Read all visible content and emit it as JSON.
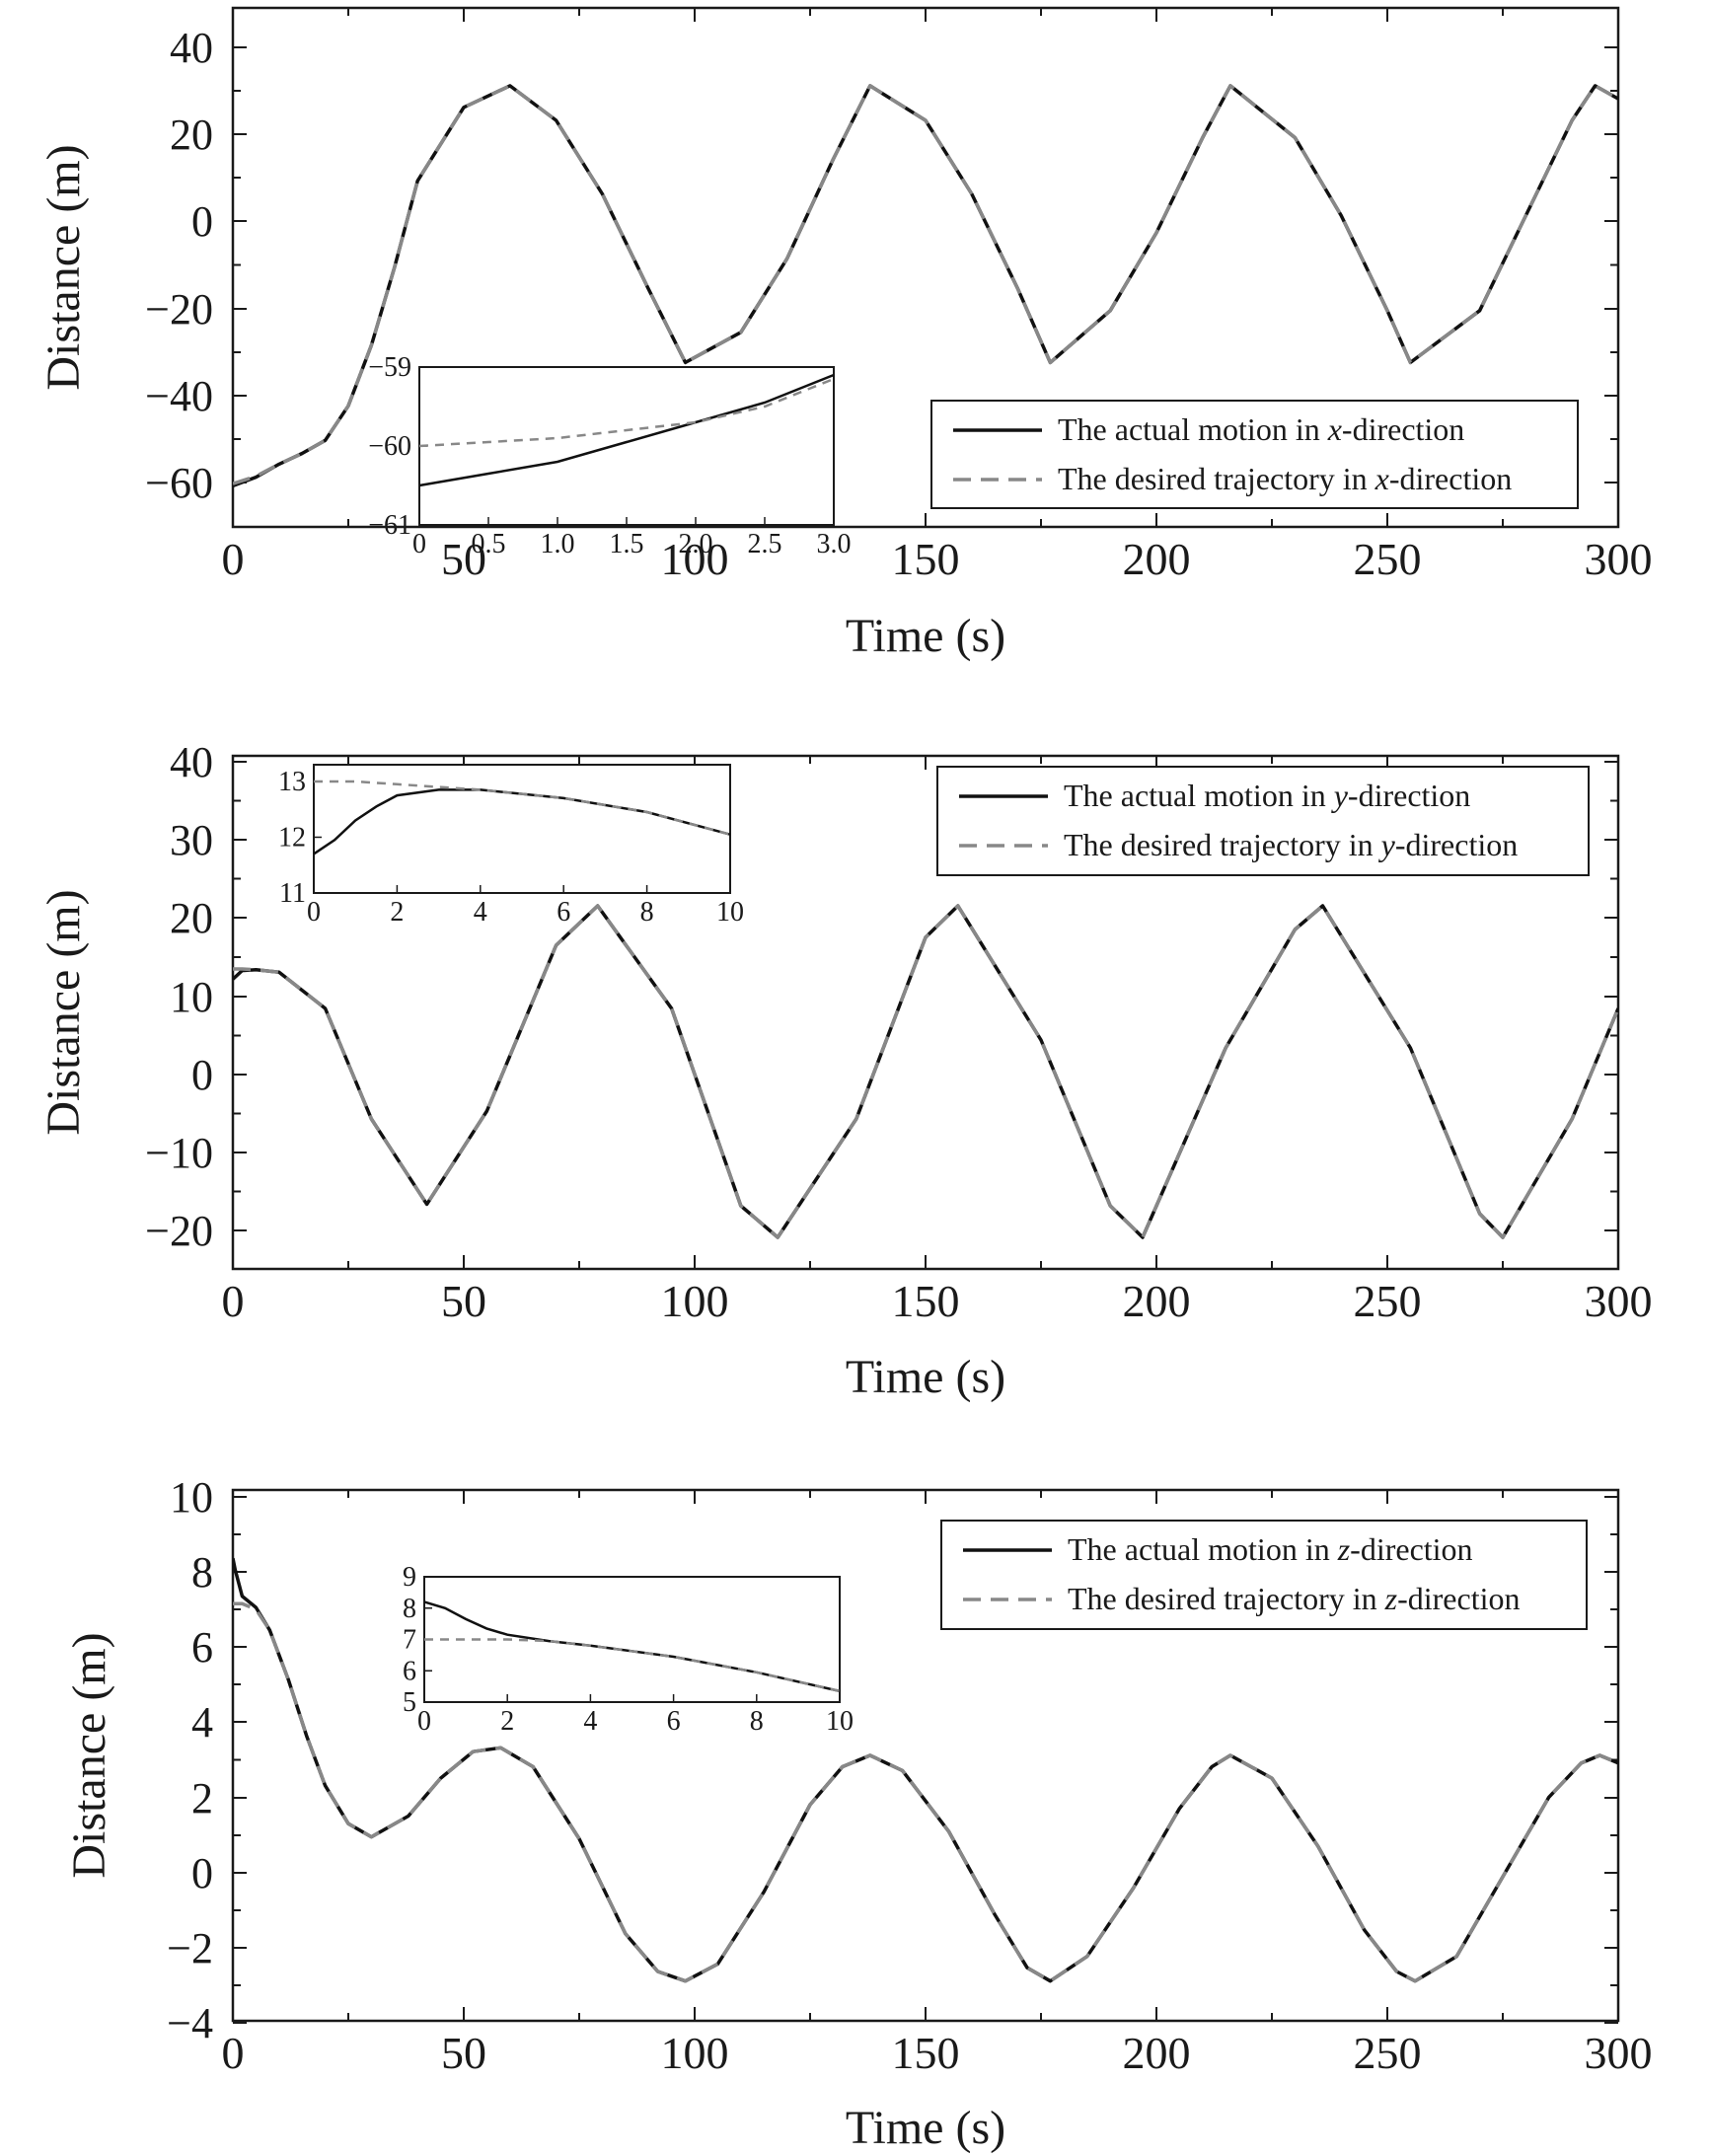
{
  "chart_data": [
    {
      "type": "line",
      "xlabel": "Time (s)",
      "ylabel": "Distance (m)",
      "xlim": [
        0,
        300
      ],
      "ylim": [
        -70,
        50
      ],
      "xticks": [
        "0",
        "50",
        "100",
        "150",
        "200",
        "250",
        "300"
      ],
      "yticks": [
        "40",
        "20",
        "0",
        "−20",
        "−40",
        "−60"
      ],
      "legend_position": "lower-right",
      "series": [
        {
          "name": "The actual motion in x-direction",
          "name_prefix": "The actual motion in ",
          "name_axis": "x",
          "name_suffix": "-direction",
          "style": "solid",
          "color": "#111111",
          "x": [
            0,
            5,
            10,
            15,
            20,
            25,
            30,
            35,
            40,
            50,
            60,
            70,
            80,
            90,
            98,
            110,
            120,
            130,
            138,
            150,
            160,
            170,
            177,
            190,
            200,
            210,
            216,
            230,
            240,
            250,
            255,
            270,
            280,
            290,
            295,
            300
          ],
          "y": [
            -60.5,
            -58.5,
            -55.5,
            -53,
            -50,
            -42,
            -28,
            -10,
            10,
            27,
            32,
            24,
            7,
            -15,
            -32,
            -25,
            -8,
            15,
            32,
            24,
            7,
            -15,
            -32,
            -20,
            -2,
            20,
            32,
            20,
            2,
            -20,
            -32,
            -20,
            2,
            24,
            32,
            29
          ]
        },
        {
          "name": "The desired trajectory in x-direction",
          "name_prefix": "The desired trajectory in ",
          "name_axis": "x",
          "name_suffix": "-direction",
          "style": "dashed",
          "color": "#888888",
          "x": [
            0,
            5,
            10,
            15,
            20,
            25,
            30,
            35,
            40,
            50,
            60,
            70,
            80,
            90,
            98,
            110,
            120,
            130,
            138,
            150,
            160,
            170,
            177,
            190,
            200,
            210,
            216,
            230,
            240,
            250,
            255,
            270,
            280,
            290,
            295,
            300
          ],
          "y": [
            -60,
            -58.3,
            -55.5,
            -53,
            -50,
            -42,
            -28,
            -10,
            10,
            27,
            32,
            24,
            7,
            -15,
            -32,
            -25,
            -8,
            15,
            32,
            24,
            7,
            -15,
            -32,
            -20,
            -2,
            20,
            32,
            20,
            2,
            -20,
            -32,
            -20,
            2,
            24,
            32,
            29
          ]
        }
      ],
      "inset": {
        "xlim": [
          0,
          3
        ],
        "ylim": [
          -61,
          -59
        ],
        "xticks": [
          "0",
          "0.5",
          "1.0",
          "1.5",
          "2.0",
          "2.5",
          "3.0"
        ],
        "yticks": [
          "−59",
          "−60",
          "−61"
        ],
        "series": [
          {
            "style": "solid",
            "x": [
              0,
              0.5,
              1,
              1.5,
              2,
              2.5,
              3
            ],
            "y": [
              -60.5,
              -60.35,
              -60.2,
              -59.95,
              -59.7,
              -59.45,
              -59.1
            ]
          },
          {
            "style": "dashed",
            "x": [
              0,
              0.5,
              1,
              1.5,
              2,
              2.5,
              3
            ],
            "y": [
              -60,
              -59.95,
              -59.9,
              -59.8,
              -59.7,
              -59.5,
              -59.15
            ]
          }
        ]
      }
    },
    {
      "type": "line",
      "xlabel": "Time (s)",
      "ylabel": "Distance (m)",
      "xlim": [
        0,
        300
      ],
      "ylim": [
        -25,
        40
      ],
      "xticks": [
        "0",
        "50",
        "100",
        "150",
        "200",
        "250",
        "300"
      ],
      "yticks": [
        "40",
        "30",
        "20",
        "10",
        "0",
        "−10",
        "−20"
      ],
      "legend_position": "top-right",
      "series": [
        {
          "name": "The actual motion in y-direction",
          "name_prefix": "The actual motion in ",
          "name_axis": "y",
          "name_suffix": "-direction",
          "style": "solid",
          "color": "#111111",
          "x": [
            0,
            2,
            5,
            10,
            20,
            30,
            42,
            55,
            70,
            79,
            95,
            110,
            118,
            135,
            150,
            157,
            175,
            190,
            197,
            215,
            230,
            236,
            255,
            270,
            275,
            290,
            300
          ],
          "y": [
            11.7,
            12.8,
            12.9,
            12.6,
            8,
            -6,
            -16.8,
            -5,
            16,
            21,
            8,
            -17,
            -21,
            -6,
            17,
            21,
            4,
            -17,
            -21,
            3,
            18,
            21,
            3,
            -18,
            -21,
            -6,
            8
          ]
        },
        {
          "name": "The desired trajectory in y-direction",
          "name_prefix": "The desired trajectory in ",
          "name_axis": "y",
          "name_suffix": "-direction",
          "style": "dashed",
          "color": "#888888",
          "x": [
            0,
            2,
            5,
            10,
            20,
            30,
            42,
            55,
            70,
            79,
            95,
            110,
            118,
            135,
            150,
            157,
            175,
            190,
            197,
            215,
            230,
            236,
            255,
            270,
            275,
            290,
            300
          ],
          "y": [
            13,
            13,
            12.9,
            12.6,
            8,
            -6,
            -16.8,
            -5,
            16,
            21,
            8,
            -17,
            -21,
            -6,
            17,
            21,
            4,
            -17,
            -21,
            3,
            18,
            21,
            3,
            -18,
            -21,
            -6,
            8
          ]
        }
      ],
      "inset": {
        "xlim": [
          0,
          10
        ],
        "ylim": [
          11,
          13.3
        ],
        "xticks": [
          "0",
          "2",
          "4",
          "6",
          "8",
          "10"
        ],
        "yticks": [
          "13",
          "12",
          "11"
        ],
        "series": [
          {
            "style": "solid",
            "x": [
              0,
              0.5,
              1,
              1.5,
              2,
              3,
              4,
              6,
              8,
              10
            ],
            "y": [
              11.7,
              11.95,
              12.3,
              12.55,
              12.75,
              12.85,
              12.85,
              12.7,
              12.45,
              12.05
            ]
          },
          {
            "style": "dashed",
            "x": [
              0,
              1,
              2,
              3,
              4,
              6,
              8,
              10
            ],
            "y": [
              13,
              13,
              12.95,
              12.9,
              12.85,
              12.7,
              12.45,
              12.05
            ]
          }
        ]
      }
    },
    {
      "type": "line",
      "xlabel": "Time (s)",
      "ylabel": "Distance (m)",
      "xlim": [
        0,
        300
      ],
      "ylim": [
        -4,
        10
      ],
      "xticks": [
        "0",
        "50",
        "100",
        "150",
        "200",
        "250",
        "300"
      ],
      "yticks": [
        "10",
        "8",
        "6",
        "4",
        "2",
        "0",
        "−2",
        "−4"
      ],
      "legend_position": "top-right",
      "series": [
        {
          "name": "The actual motion in z-direction",
          "name_prefix": "The actual motion in ",
          "name_axis": "z",
          "name_suffix": "-direction",
          "style": "solid",
          "color": "#111111",
          "x": [
            0,
            0.5,
            2,
            5,
            8,
            12,
            16,
            20,
            25,
            30,
            38,
            45,
            52,
            58,
            65,
            75,
            85,
            92,
            98,
            105,
            115,
            125,
            132,
            138,
            145,
            155,
            165,
            172,
            177,
            185,
            195,
            205,
            212,
            216,
            225,
            235,
            245,
            252,
            256,
            265,
            275,
            285,
            292,
            296,
            300
          ],
          "y": [
            8.2,
            7.9,
            7.2,
            6.9,
            6.3,
            5,
            3.5,
            2.2,
            1.2,
            0.85,
            1.4,
            2.4,
            3.1,
            3.2,
            2.7,
            0.8,
            -1.7,
            -2.7,
            -2.95,
            -2.5,
            -0.6,
            1.7,
            2.7,
            3,
            2.6,
            1,
            -1.2,
            -2.6,
            -2.95,
            -2.3,
            -0.5,
            1.6,
            2.7,
            3,
            2.4,
            0.6,
            -1.6,
            -2.7,
            -2.95,
            -2.3,
            -0.2,
            1.9,
            2.8,
            3,
            2.8
          ]
        },
        {
          "name": "The desired trajectory in z-direction",
          "name_prefix": "The desired trajectory in ",
          "name_axis": "z",
          "name_suffix": "-direction",
          "style": "dashed",
          "color": "#888888",
          "x": [
            0,
            0.5,
            2,
            5,
            8,
            12,
            16,
            20,
            25,
            30,
            38,
            45,
            52,
            58,
            65,
            75,
            85,
            92,
            98,
            105,
            115,
            125,
            132,
            138,
            145,
            155,
            165,
            172,
            177,
            185,
            195,
            205,
            212,
            216,
            225,
            235,
            245,
            252,
            256,
            265,
            275,
            285,
            292,
            296,
            300
          ],
          "y": [
            7,
            7,
            7,
            6.85,
            6.3,
            5,
            3.5,
            2.2,
            1.2,
            0.85,
            1.4,
            2.4,
            3.1,
            3.2,
            2.7,
            0.8,
            -1.7,
            -2.7,
            -2.95,
            -2.5,
            -0.6,
            1.7,
            2.7,
            3,
            2.6,
            1,
            -1.2,
            -2.6,
            -2.95,
            -2.3,
            -0.5,
            1.6,
            2.7,
            3,
            2.4,
            0.6,
            -1.6,
            -2.7,
            -2.95,
            -2.3,
            -0.2,
            1.9,
            2.8,
            3,
            2.8
          ]
        }
      ],
      "inset": {
        "xlim": [
          0,
          10
        ],
        "ylim": [
          5,
          9
        ],
        "xticks": [
          "0",
          "2",
          "4",
          "6",
          "8",
          "10"
        ],
        "yticks": [
          "9",
          "8",
          "7",
          "6",
          "5"
        ],
        "series": [
          {
            "style": "solid",
            "x": [
              0,
              0.5,
              1,
              1.5,
              2,
              3,
              4,
              6,
              8,
              10
            ],
            "y": [
              8.2,
              8.0,
              7.65,
              7.35,
              7.15,
              6.95,
              6.8,
              6.45,
              5.95,
              5.35
            ]
          },
          {
            "style": "dashed",
            "x": [
              0,
              1,
              2,
              3,
              4,
              6,
              8,
              10
            ],
            "y": [
              7,
              7,
              7,
              6.95,
              6.8,
              6.45,
              5.95,
              5.35
            ]
          }
        ]
      }
    }
  ]
}
